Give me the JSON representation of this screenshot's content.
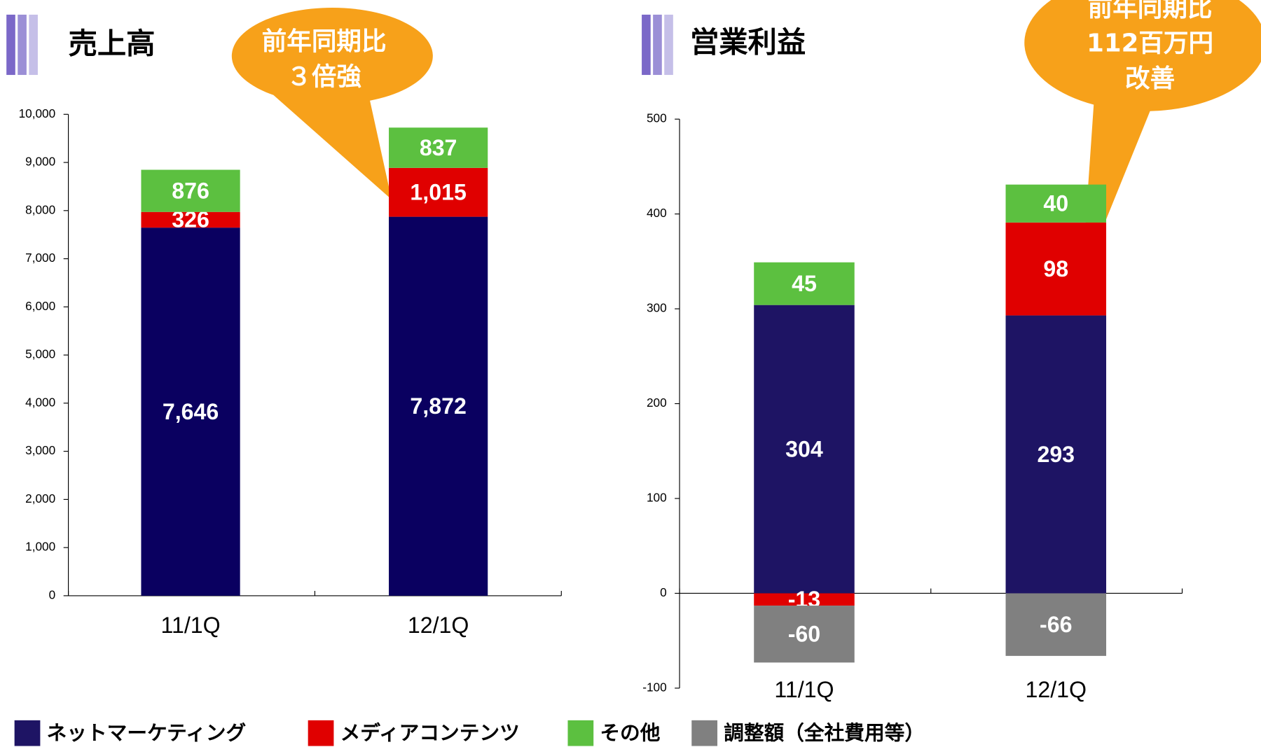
{
  "chart_data": [
    {
      "type": "bar",
      "stacked": true,
      "title": "売上高",
      "callout": [
        "前年同期比",
        "３倍強"
      ],
      "categories": [
        "11/1Q",
        "12/1Q"
      ],
      "series": [
        {
          "name": "ネットマーケティング",
          "color": "#0a0060",
          "values": [
            7646,
            7872
          ],
          "value_labels": [
            "7,646",
            "7,872"
          ]
        },
        {
          "name": "メディアコンテンツ",
          "color": "#e00000",
          "values": [
            326,
            1015
          ],
          "value_labels": [
            "326",
            "1,015"
          ]
        },
        {
          "name": "その他",
          "color": "#5cc040",
          "values": [
            876,
            837
          ],
          "value_labels": [
            "876",
            "837"
          ]
        }
      ],
      "ylim": [
        0,
        10000
      ],
      "yticks": [
        0,
        {
          "value": 1000,
          "label": "1,000"
        },
        {
          "value": 2000,
          "label": "2,000"
        },
        {
          "value": 3000,
          "label": "3,000"
        },
        {
          "value": 4000,
          "label": "4,000"
        },
        {
          "value": 5000,
          "label": "5,000"
        },
        {
          "value": 6000,
          "label": "6,000"
        },
        {
          "value": 7000,
          "label": "7,000"
        },
        {
          "value": 8000,
          "label": "8,000"
        },
        {
          "value": 9000,
          "label": "9,000"
        },
        {
          "value": 10000,
          "label": "10,000"
        }
      ]
    },
    {
      "type": "bar",
      "stacked": true,
      "title": "営業利益",
      "callout": [
        "前年同期比",
        "112百万円",
        "改善"
      ],
      "categories": [
        "11/1Q",
        "12/1Q"
      ],
      "series": [
        {
          "name": "ネットマーケティング",
          "color": "#1e1464",
          "values": [
            304,
            293
          ]
        },
        {
          "name": "メディアコンテンツ",
          "color": "#e00000",
          "values": [
            -13,
            98
          ]
        },
        {
          "name": "その他",
          "color": "#5cc040",
          "values": [
            45,
            40
          ]
        },
        {
          "name": "調整額（全社費用等）",
          "color": "#808080",
          "values": [
            -60,
            -66
          ]
        }
      ],
      "ylim": [
        -100,
        500
      ],
      "yticks": [
        -100,
        0,
        100,
        200,
        300,
        400,
        500
      ]
    }
  ]
}
